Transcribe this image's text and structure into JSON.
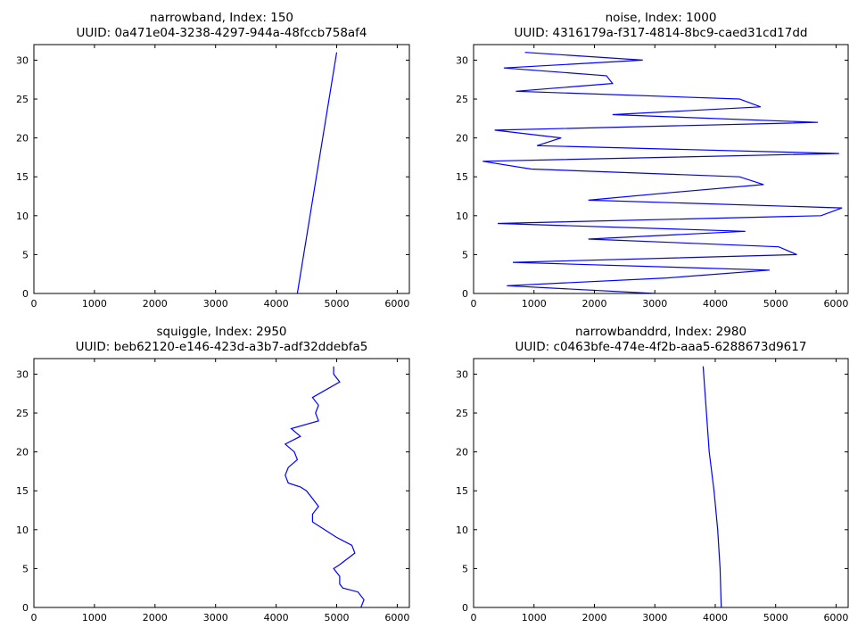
{
  "chart_data": [
    {
      "type": "line",
      "title": "narrowband, Index: 150",
      "subtitle": "UUID: 0a471e04-3238-4297-944a-48fccb758af4",
      "xlim": [
        0,
        6200
      ],
      "ylim": [
        0,
        32
      ],
      "xticks": [
        0,
        1000,
        2000,
        3000,
        4000,
        5000,
        6000
      ],
      "yticks": [
        0,
        5,
        10,
        15,
        20,
        25,
        30
      ],
      "grid": false,
      "color": "#0000ff",
      "x": [
        4350,
        5000
      ],
      "y": [
        0,
        31
      ]
    },
    {
      "type": "line",
      "title": "noise, Index: 1000",
      "subtitle": "UUID: 4316179a-f317-4814-8bc9-caed31cd17dd",
      "xlim": [
        0,
        6200
      ],
      "ylim": [
        0,
        32
      ],
      "xticks": [
        0,
        1000,
        2000,
        3000,
        4000,
        5000,
        6000
      ],
      "yticks": [
        0,
        5,
        10,
        15,
        20,
        25,
        30
      ],
      "grid": false,
      "color": "#0000ff",
      "x": [
        3000,
        550,
        3200,
        4900,
        650,
        5350,
        5050,
        1900,
        4500,
        400,
        5750,
        6100,
        1900,
        3300,
        4800,
        4400,
        950,
        150,
        6050,
        1050,
        1450,
        350,
        5700,
        2300,
        4750,
        4400,
        700,
        2300,
        2200,
        500,
        2800,
        850
      ],
      "y": [
        0,
        1,
        2,
        3,
        4,
        5,
        6,
        7,
        8,
        9,
        10,
        11,
        12,
        13,
        14,
        15,
        16,
        17,
        18,
        19,
        20,
        21,
        22,
        23,
        24,
        25,
        26,
        27,
        28,
        29,
        30,
        31
      ]
    },
    {
      "type": "line",
      "title": "squiggle, Index: 2950",
      "subtitle": "UUID: beb62120-e146-423d-a3b7-adf32ddebfa5",
      "xlim": [
        0,
        6200
      ],
      "ylim": [
        0,
        32
      ],
      "xticks": [
        0,
        1000,
        2000,
        3000,
        4000,
        5000,
        6000
      ],
      "yticks": [
        0,
        5,
        10,
        15,
        20,
        25,
        30
      ],
      "grid": false,
      "color": "#0000ff",
      "x": [
        5400,
        5450,
        5350,
        5100,
        5050,
        5050,
        4950,
        5050,
        5300,
        5250,
        5000,
        4800,
        4600,
        4600,
        4700,
        4600,
        4500,
        4400,
        4200,
        4150,
        4200,
        4350,
        4300,
        4150,
        4400,
        4250,
        4700,
        4650,
        4700,
        4600,
        5050,
        4950,
        4950
      ],
      "y": [
        0,
        1,
        2,
        2.5,
        3,
        4,
        5,
        5.5,
        7,
        8,
        9,
        10,
        11,
        12,
        13,
        14,
        15,
        15.5,
        16,
        17,
        18,
        19,
        20,
        21,
        22,
        23,
        24,
        25,
        26,
        27,
        29,
        30,
        31
      ]
    },
    {
      "type": "line",
      "title": "narrowbanddrd, Index: 2980",
      "subtitle": "UUID: c0463bfe-474e-4f2b-aaa5-6288673d9617",
      "xlim": [
        0,
        6200
      ],
      "ylim": [
        0,
        32
      ],
      "xticks": [
        0,
        1000,
        2000,
        3000,
        4000,
        5000,
        6000
      ],
      "yticks": [
        0,
        5,
        10,
        15,
        20,
        25,
        30
      ],
      "grid": false,
      "color": "#0000ff",
      "x": [
        4100,
        4080,
        4040,
        3980,
        3900,
        3800
      ],
      "y": [
        0,
        5,
        10,
        15,
        20,
        31
      ]
    }
  ]
}
